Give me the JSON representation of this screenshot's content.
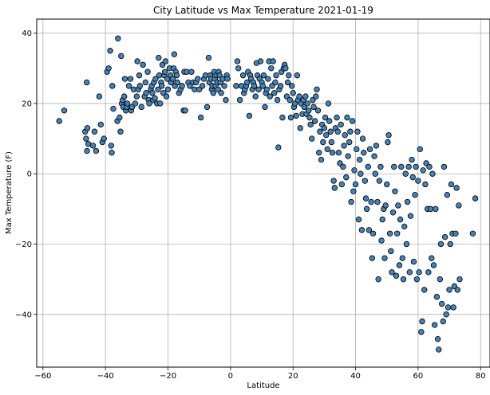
{
  "chart_data": {
    "type": "scatter",
    "title": "City Latitude vs Max Temperature 2021-01-19",
    "xlabel": "Latitude",
    "ylabel": "Max Temperature (F)",
    "xlim": [
      -62,
      83
    ],
    "ylim": [
      -55,
      44
    ],
    "xticks": [
      -60,
      -40,
      -20,
      0,
      20,
      40,
      60,
      80
    ],
    "yticks": [
      -40,
      -20,
      0,
      20,
      40
    ],
    "grid": true,
    "colors": {
      "marker_fill": "#4682b4",
      "marker_edge": "#000000",
      "grid": "#b0b0b0"
    },
    "points": [
      [
        -54.8,
        15
      ],
      [
        -53.2,
        18
      ],
      [
        -46,
        26
      ],
      [
        -46.2,
        10
      ],
      [
        -46.5,
        12
      ],
      [
        -45.8,
        13
      ],
      [
        -45.5,
        8.5
      ],
      [
        -45.9,
        6.5
      ],
      [
        -44,
        8
      ],
      [
        -43.5,
        12
      ],
      [
        -43,
        6.5
      ],
      [
        -42,
        22
      ],
      [
        -41.5,
        14
      ],
      [
        -41,
        9
      ],
      [
        -40.5,
        10
      ],
      [
        -39.5,
        29
      ],
      [
        -39,
        30
      ],
      [
        -38.5,
        35
      ],
      [
        -38.2,
        8
      ],
      [
        -38,
        6
      ],
      [
        -37.5,
        18.5
      ],
      [
        -37.8,
        25
      ],
      [
        -36,
        38.5
      ],
      [
        -36.2,
        15
      ],
      [
        -35.5,
        16
      ],
      [
        -35.2,
        12
      ],
      [
        -35,
        33.5
      ],
      [
        -34.8,
        20
      ],
      [
        -34.5,
        21
      ],
      [
        -34.3,
        19
      ],
      [
        -34,
        22
      ],
      [
        -33.8,
        27
      ],
      [
        -33.5,
        18
      ],
      [
        -33.2,
        19
      ],
      [
        -33,
        20
      ],
      [
        -32.5,
        25
      ],
      [
        -32,
        27
      ],
      [
        -31.8,
        18
      ],
      [
        -31.5,
        19
      ],
      [
        -31,
        24
      ],
      [
        -30.5,
        20
      ],
      [
        -30,
        22
      ],
      [
        -29.8,
        32
      ],
      [
        -29.5,
        24
      ],
      [
        -29.2,
        28
      ],
      [
        -29,
        25
      ],
      [
        -28.5,
        19
      ],
      [
        -28,
        31
      ],
      [
        -27.5,
        22
      ],
      [
        -27.2,
        26
      ],
      [
        -27,
        23
      ],
      [
        -26.5,
        29
      ],
      [
        -26.2,
        21
      ],
      [
        -26,
        20
      ],
      [
        -25.5,
        24
      ],
      [
        -25.2,
        25
      ],
      [
        -25,
        23
      ],
      [
        -24.8,
        21
      ],
      [
        -24.5,
        26
      ],
      [
        -24.2,
        21.5
      ],
      [
        -24,
        27
      ],
      [
        -23.5,
        20
      ],
      [
        -23.2,
        24
      ],
      [
        -23,
        33
      ],
      [
        -22.8,
        28
      ],
      [
        -22.5,
        20
      ],
      [
        -22.2,
        26
      ],
      [
        -22,
        25
      ],
      [
        -21.8,
        31
      ],
      [
        -21.5,
        23
      ],
      [
        -21.2,
        28
      ],
      [
        -21,
        29
      ],
      [
        -20.8,
        32
      ],
      [
        -20.5,
        22
      ],
      [
        -20.2,
        27
      ],
      [
        -20,
        24
      ],
      [
        -19.5,
        30
      ],
      [
        -19.2,
        28
      ],
      [
        -19,
        26
      ],
      [
        -18.5,
        27
      ],
      [
        -18.2,
        30
      ],
      [
        -18,
        34
      ],
      [
        -17.8,
        25
      ],
      [
        -17.5,
        29
      ],
      [
        -17.2,
        28
      ],
      [
        -17,
        26
      ],
      [
        -16.5,
        23
      ],
      [
        -16,
        24
      ],
      [
        -15.5,
        25
      ],
      [
        -15,
        18
      ],
      [
        -14.8,
        29
      ],
      [
        -14.5,
        18
      ],
      [
        -14,
        29
      ],
      [
        -13.5,
        26
      ],
      [
        -13,
        25
      ],
      [
        -12.5,
        29
      ],
      [
        -12,
        26
      ],
      [
        -11.5,
        24
      ],
      [
        -11,
        26
      ],
      [
        -10.5,
        27
      ],
      [
        -10,
        24
      ],
      [
        -9.5,
        16
      ],
      [
        -9,
        25
      ],
      [
        -8.5,
        27
      ],
      [
        -8,
        28
      ],
      [
        -7.5,
        19
      ],
      [
        -7,
        33
      ],
      [
        -6.8,
        26
      ],
      [
        -6.5,
        28
      ],
      [
        -6.2,
        27
      ],
      [
        -6,
        24
      ],
      [
        -5.8,
        25
      ],
      [
        -5.5,
        23
      ],
      [
        -5.2,
        29
      ],
      [
        -5,
        27
      ],
      [
        -4.8,
        25
      ],
      [
        -4.5,
        28
      ],
      [
        -4.2,
        26
      ],
      [
        -4,
        24
      ],
      [
        -3.8,
        29
      ],
      [
        -3.5,
        28
      ],
      [
        -3.2,
        26
      ],
      [
        -3,
        23
      ],
      [
        -2.5,
        27
      ],
      [
        -2,
        25
      ],
      [
        -1.5,
        21
      ],
      [
        -1.2,
        28
      ],
      [
        -1,
        27
      ],
      [
        1.8,
        25
      ],
      [
        2.2,
        32
      ],
      [
        2.5,
        30
      ],
      [
        3,
        21
      ],
      [
        3.5,
        25
      ],
      [
        4,
        28
      ],
      [
        4.3,
        23
      ],
      [
        4.6,
        24
      ],
      [
        5,
        25
      ],
      [
        5.3,
        26
      ],
      [
        5.6,
        29
      ],
      [
        6,
        16.5
      ],
      [
        6.3,
        28
      ],
      [
        6.6,
        27
      ],
      [
        7,
        24
      ],
      [
        7.3,
        26
      ],
      [
        7.6,
        25
      ],
      [
        8,
        22
      ],
      [
        8.3,
        31.5
      ],
      [
        8.6,
        28
      ],
      [
        9,
        24
      ],
      [
        9.3,
        27
      ],
      [
        9.6,
        32
      ],
      [
        10,
        26
      ],
      [
        10.3,
        25
      ],
      [
        10.6,
        28
      ],
      [
        11,
        19
      ],
      [
        11.3,
        23
      ],
      [
        11.6,
        24
      ],
      [
        12,
        27
      ],
      [
        12.3,
        32
      ],
      [
        12.6,
        22
      ],
      [
        13,
        30
      ],
      [
        13.3,
        25
      ],
      [
        13.6,
        32
      ],
      [
        14,
        23
      ],
      [
        14.3,
        26
      ],
      [
        14.6,
        28
      ],
      [
        15,
        21
      ],
      [
        15.3,
        7.5
      ],
      [
        15.6,
        24
      ],
      [
        16,
        25
      ],
      [
        16.3,
        29
      ],
      [
        16.6,
        16
      ],
      [
        17,
        30
      ],
      [
        17.3,
        31
      ],
      [
        17.6,
        30
      ],
      [
        18,
        22
      ],
      [
        18.3,
        26
      ],
      [
        18.6,
        28
      ],
      [
        19,
        21
      ],
      [
        19.3,
        16
      ],
      [
        19.6,
        25
      ],
      [
        20,
        23
      ],
      [
        20.3,
        19
      ],
      [
        20.6,
        20
      ],
      [
        21,
        16.5
      ],
      [
        21.3,
        28
      ],
      [
        21.6,
        21
      ],
      [
        22,
        22
      ],
      [
        22.3,
        13
      ],
      [
        22.6,
        20
      ],
      [
        23,
        17
      ],
      [
        23.3,
        21
      ],
      [
        23.6,
        19
      ],
      [
        24,
        22
      ],
      [
        24.3,
        17
      ],
      [
        24.6,
        20
      ],
      [
        25,
        18
      ],
      [
        25.3,
        16
      ],
      [
        25.6,
        14
      ],
      [
        26,
        10
      ],
      [
        26.3,
        21
      ],
      [
        26.6,
        19
      ],
      [
        27,
        15
      ],
      [
        27.3,
        22
      ],
      [
        27.6,
        24
      ],
      [
        28,
        18
      ],
      [
        28.3,
        6
      ],
      [
        28.6,
        12
      ],
      [
        29,
        4
      ],
      [
        29.3,
        14
      ],
      [
        29.6,
        9
      ],
      [
        30,
        13
      ],
      [
        30.3,
        16
      ],
      [
        30.6,
        11
      ],
      [
        31,
        7
      ],
      [
        31.3,
        20
      ],
      [
        31.6,
        15
      ],
      [
        32,
        12
      ],
      [
        32.3,
        9
      ],
      [
        32.6,
        6
      ],
      [
        33,
        -2
      ],
      [
        33.3,
        -4
      ],
      [
        33.6,
        13
      ],
      [
        34,
        16
      ],
      [
        34.3,
        12
      ],
      [
        34.6,
        6
      ],
      [
        35,
        3
      ],
      [
        35.3,
        14
      ],
      [
        35.6,
        -3
      ],
      [
        36,
        2
      ],
      [
        36.3,
        8
      ],
      [
        36.6,
        11
      ],
      [
        37,
        -1
      ],
      [
        37.3,
        16
      ],
      [
        37.6,
        5
      ],
      [
        38,
        9
      ],
      [
        38.3,
        12
      ],
      [
        38.6,
        -8
      ],
      [
        39,
        15
      ],
      [
        39.3,
        -5
      ],
      [
        39.6,
        1
      ],
      [
        40,
        -3
      ],
      [
        40.3,
        7
      ],
      [
        40.6,
        12
      ],
      [
        41,
        -13
      ],
      [
        41.3,
        4
      ],
      [
        41.6,
        0
      ],
      [
        42,
        -16
      ],
      [
        42.3,
        10
      ],
      [
        42.6,
        6
      ],
      [
        43,
        -2
      ],
      [
        43.3,
        -7
      ],
      [
        43.6,
        -10
      ],
      [
        44,
        2
      ],
      [
        44.3,
        -16
      ],
      [
        44.6,
        7
      ],
      [
        45,
        -8
      ],
      [
        45.3,
        -24
      ],
      [
        45.6,
        -17
      ],
      [
        46,
        5
      ],
      [
        46.3,
        0
      ],
      [
        46.6,
        8
      ],
      [
        47,
        -8
      ],
      [
        47.3,
        -30
      ],
      [
        47.6,
        -2
      ],
      [
        48,
        2
      ],
      [
        48.3,
        -19
      ],
      [
        48.6,
        -13
      ],
      [
        49,
        -10
      ],
      [
        49.3,
        -24
      ],
      [
        49.6,
        -9
      ],
      [
        50,
        -3
      ],
      [
        50.3,
        9
      ],
      [
        50.6,
        11
      ],
      [
        51,
        -17
      ],
      [
        51.3,
        -22
      ],
      [
        51.6,
        -28
      ],
      [
        52,
        -11
      ],
      [
        52.3,
        2
      ],
      [
        52.6,
        -5
      ],
      [
        53,
        -29
      ],
      [
        53.3,
        -17
      ],
      [
        53.6,
        -9
      ],
      [
        54,
        -26
      ],
      [
        54.3,
        -13
      ],
      [
        54.6,
        2
      ],
      [
        55,
        -24
      ],
      [
        55.3,
        -30
      ],
      [
        55.6,
        -15
      ],
      [
        56,
        0
      ],
      [
        56.3,
        -20
      ],
      [
        56.6,
        -8
      ],
      [
        57,
        2
      ],
      [
        57.3,
        -28
      ],
      [
        57.6,
        -12
      ],
      [
        58,
        4
      ],
      [
        58.3,
        -1
      ],
      [
        58.6,
        -25
      ],
      [
        59,
        -6
      ],
      [
        59.3,
        2
      ],
      [
        59.6,
        -30
      ],
      [
        60,
        -2
      ],
      [
        60.3,
        -28
      ],
      [
        60.6,
        7
      ],
      [
        61,
        -45
      ],
      [
        61.3,
        -42
      ],
      [
        61.6,
        1
      ],
      [
        62,
        -33
      ],
      [
        62.3,
        -3
      ],
      [
        62.6,
        3
      ],
      [
        63,
        -10
      ],
      [
        63.3,
        -28
      ],
      [
        63.6,
        2
      ],
      [
        64,
        -10
      ],
      [
        64.3,
        -24
      ],
      [
        64.6,
        0
      ],
      [
        65,
        -26
      ],
      [
        65.3,
        -43
      ],
      [
        65.6,
        -10
      ],
      [
        66,
        -35
      ],
      [
        66.3,
        -47
      ],
      [
        66.6,
        -50
      ],
      [
        67,
        -30
      ],
      [
        67.3,
        -20
      ],
      [
        67.6,
        -37
      ],
      [
        68,
        -42
      ],
      [
        68.3,
        2
      ],
      [
        68.6,
        -18
      ],
      [
        69,
        -40
      ],
      [
        69.3,
        -6
      ],
      [
        69.6,
        -38
      ],
      [
        70,
        -33
      ],
      [
        70.3,
        -20
      ],
      [
        70.6,
        -3
      ],
      [
        71,
        -17
      ],
      [
        71.3,
        -38
      ],
      [
        71.6,
        -32
      ],
      [
        72,
        -17
      ],
      [
        72.3,
        -4
      ],
      [
        72.6,
        -33
      ],
      [
        73,
        -9
      ],
      [
        73.3,
        -30
      ],
      [
        77.5,
        -17
      ],
      [
        78.3,
        -7
      ]
    ]
  }
}
